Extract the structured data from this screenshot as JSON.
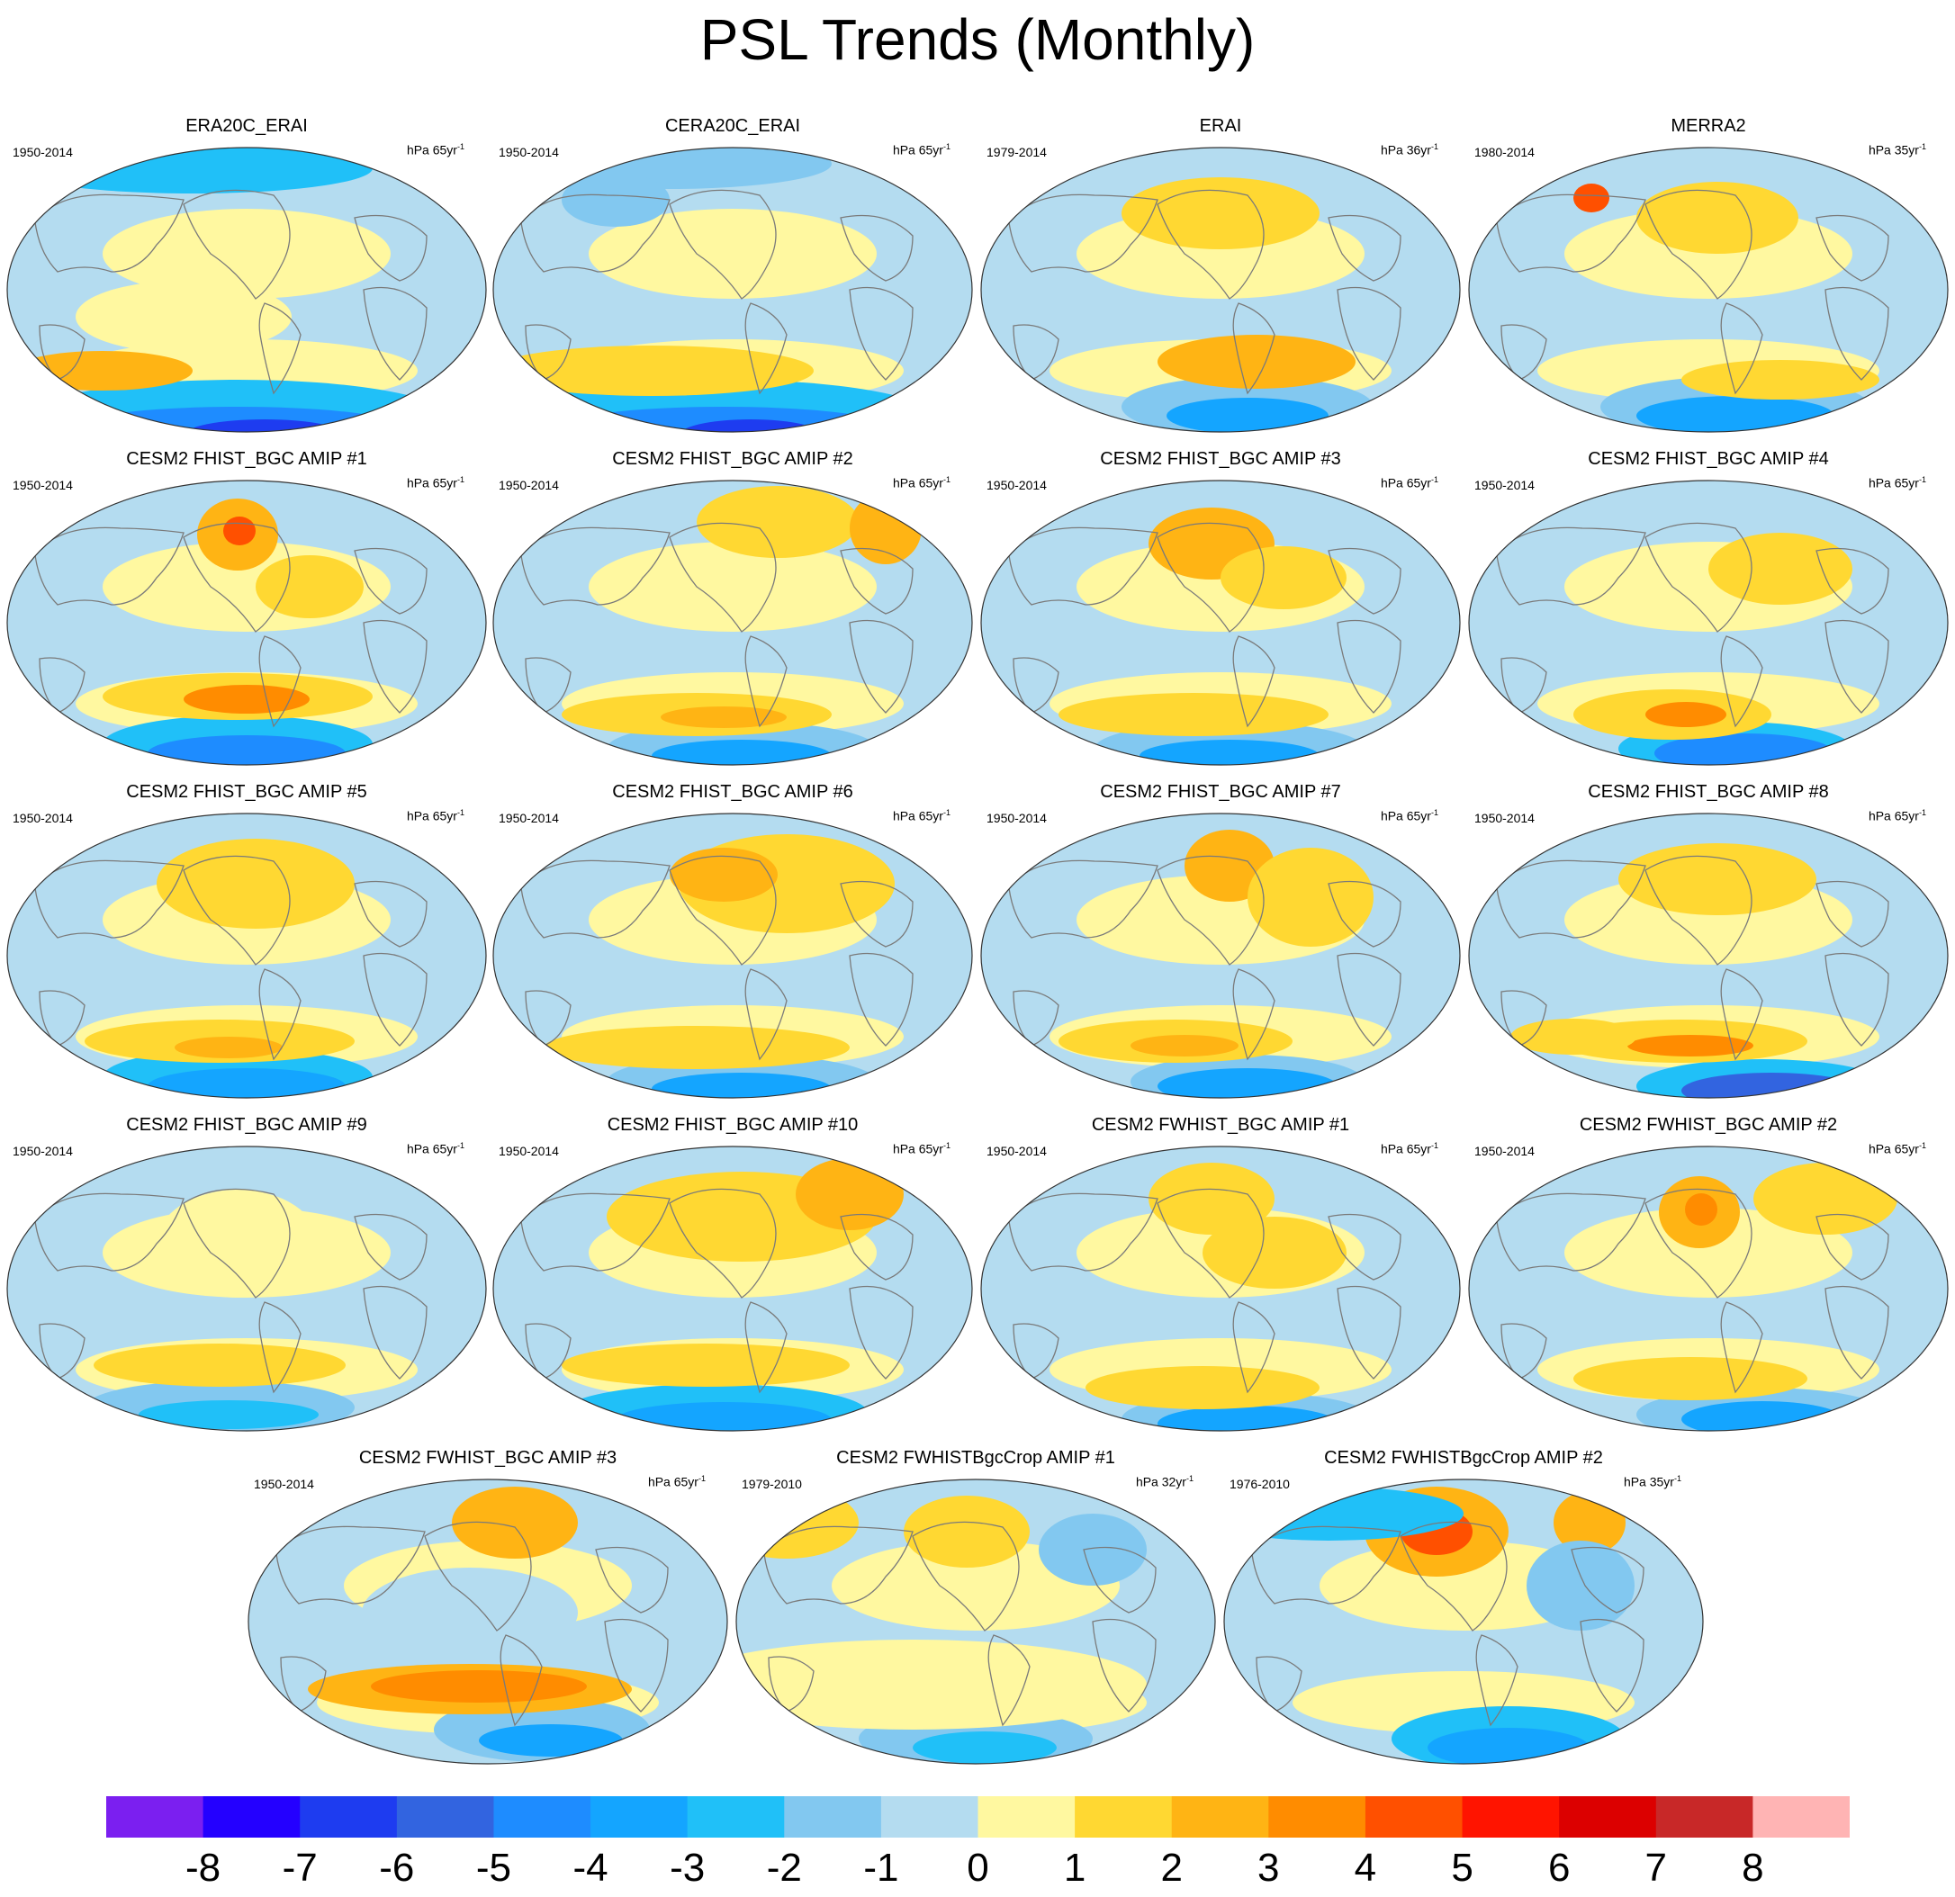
{
  "title": "PSL Trends (Monthly)",
  "colorbar": {
    "colors": [
      "#7b1ff0",
      "#2400ff",
      "#1e3cf0",
      "#3264e0",
      "#1e8cff",
      "#14a5ff",
      "#20c0f8",
      "#82c8f0",
      "#b4dcf0",
      "#fff8a0",
      "#ffd832",
      "#ffb414",
      "#ff8c00",
      "#ff5000",
      "#ff1400",
      "#dc0000",
      "#c82828",
      "#ffb4b4"
    ],
    "tick_labels": [
      "-8",
      "-7",
      "-6",
      "-5",
      "-4",
      "-3",
      "-2",
      "-1",
      "0",
      "1",
      "2",
      "3",
      "4",
      "5",
      "6",
      "7",
      "8"
    ]
  },
  "panels": [
    {
      "title": "ERA20C_ERAI",
      "years": "1950-2014",
      "units": "hPa 65yr",
      "units_exp": "-1"
    },
    {
      "title": "CERA20C_ERAI",
      "years": "1950-2014",
      "units": "hPa 65yr",
      "units_exp": "-1"
    },
    {
      "title": "ERAI",
      "years": "1979-2014",
      "units": "hPa 36yr",
      "units_exp": "-1"
    },
    {
      "title": "MERRA2",
      "years": "1980-2014",
      "units": "hPa 35yr",
      "units_exp": "-1"
    },
    {
      "title": "CESM2 FHIST_BGC AMIP #1",
      "years": "1950-2014",
      "units": "hPa 65yr",
      "units_exp": "-1"
    },
    {
      "title": "CESM2 FHIST_BGC AMIP #2",
      "years": "1950-2014",
      "units": "hPa 65yr",
      "units_exp": "-1"
    },
    {
      "title": "CESM2 FHIST_BGC AMIP #3",
      "years": "1950-2014",
      "units": "hPa 65yr",
      "units_exp": "-1"
    },
    {
      "title": "CESM2 FHIST_BGC AMIP #4",
      "years": "1950-2014",
      "units": "hPa 65yr",
      "units_exp": "-1"
    },
    {
      "title": "CESM2 FHIST_BGC AMIP #5",
      "years": "1950-2014",
      "units": "hPa 65yr",
      "units_exp": "-1"
    },
    {
      "title": "CESM2 FHIST_BGC AMIP #6",
      "years": "1950-2014",
      "units": "hPa 65yr",
      "units_exp": "-1"
    },
    {
      "title": "CESM2 FHIST_BGC AMIP #7",
      "years": "1950-2014",
      "units": "hPa 65yr",
      "units_exp": "-1"
    },
    {
      "title": "CESM2 FHIST_BGC AMIP #8",
      "years": "1950-2014",
      "units": "hPa 65yr",
      "units_exp": "-1"
    },
    {
      "title": "CESM2 FHIST_BGC AMIP #9",
      "years": "1950-2014",
      "units": "hPa 65yr",
      "units_exp": "-1"
    },
    {
      "title": "CESM2 FHIST_BGC AMIP #10",
      "years": "1950-2014",
      "units": "hPa 65yr",
      "units_exp": "-1"
    },
    {
      "title": "CESM2 FWHIST_BGC AMIP #1",
      "years": "1950-2014",
      "units": "hPa 65yr",
      "units_exp": "-1"
    },
    {
      "title": "CESM2 FWHIST_BGC AMIP #2",
      "years": "1950-2014",
      "units": "hPa 65yr",
      "units_exp": "-1"
    },
    {
      "title": "CESM2 FWHIST_BGC AMIP #3",
      "years": "1950-2014",
      "units": "hPa 65yr",
      "units_exp": "-1"
    },
    {
      "title": "CESM2 FWHISTBgcCrop AMIP #1",
      "years": "1979-2010",
      "units": "hPa 32yr",
      "units_exp": "-1"
    },
    {
      "title": "CESM2 FWHISTBgcCrop AMIP #2",
      "years": "1976-2010",
      "units": "hPa 35yr",
      "units_exp": "-1"
    }
  ]
}
